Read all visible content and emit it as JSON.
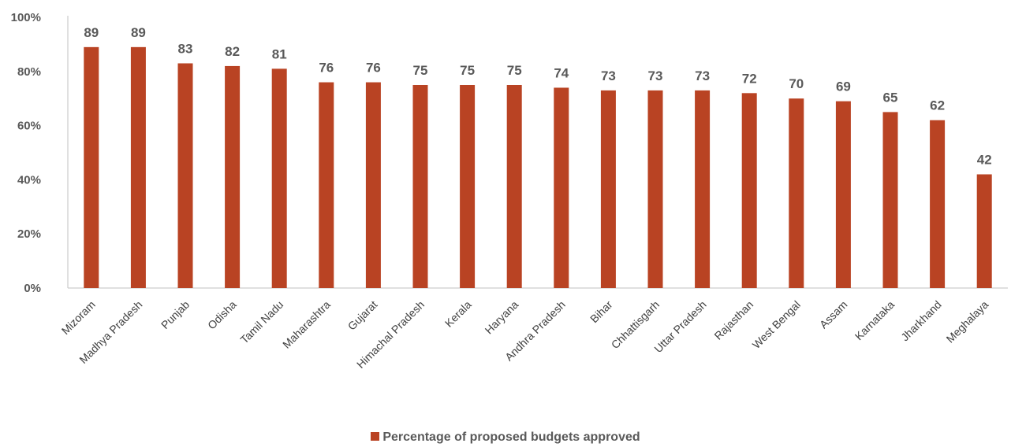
{
  "chart_data": {
    "type": "bar",
    "title": "",
    "xlabel": "",
    "ylabel": "",
    "categories": [
      "Mizoram",
      "Madhya Pradesh",
      "Punjab",
      "Odisha",
      "Tamil Nadu",
      "Maharashtra",
      "Gujarat",
      "Himachal Pradesh",
      "Kerala",
      "Haryana",
      "Andhra Pradesh",
      "Bihar",
      "Chhattisgarh",
      "Uttar Pradesh",
      "Rajasthan",
      "West Bengal",
      "Assam",
      "Karnataka",
      "Jharkhand",
      "Meghalaya"
    ],
    "series": [
      {
        "name": "Percentage of proposed budgets approved",
        "values": [
          89,
          89,
          83,
          82,
          81,
          76,
          76,
          75,
          75,
          75,
          74,
          73,
          73,
          73,
          72,
          70,
          69,
          65,
          62,
          42
        ],
        "data_labels": [
          "89",
          "89",
          "83",
          "82",
          "81",
          "76",
          "76",
          "75",
          "75",
          "75",
          "74",
          "73",
          "73",
          "73",
          "72",
          "70",
          "69",
          "65",
          "62",
          "42"
        ]
      }
    ],
    "ylim": [
      0,
      100
    ],
    "y_ticks": [
      "0%",
      "20%",
      "40%",
      "60%",
      "80%",
      "100%"
    ],
    "grid": false,
    "legend_position": "bottom-center",
    "bar_color": "#b94323",
    "axis_color": "#c0c0c0"
  },
  "legend": {
    "label": "Percentage of proposed budgets approved"
  }
}
